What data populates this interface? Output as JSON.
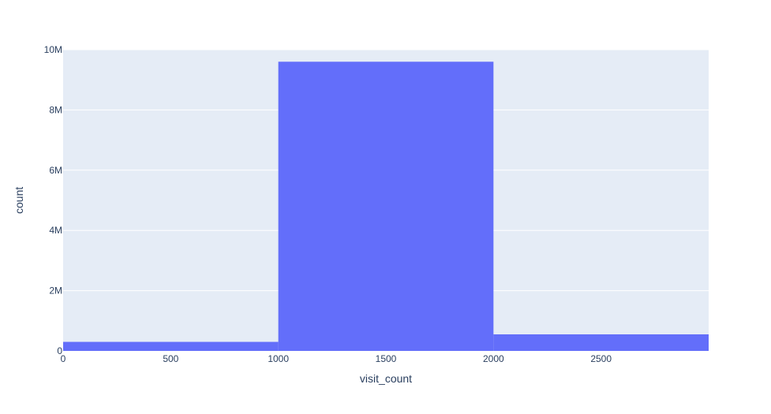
{
  "chart_data": {
    "type": "bar",
    "subtype": "histogram",
    "bins": [
      {
        "x0": 0,
        "x1": 1000,
        "count": 300000
      },
      {
        "x0": 1000,
        "x1": 2000,
        "count": 9600000
      },
      {
        "x0": 2000,
        "x1": 3000,
        "count": 550000
      }
    ],
    "xlabel": "visit_count",
    "ylabel": "count",
    "xlim": [
      0,
      3000
    ],
    "ylim": [
      0,
      10000000
    ],
    "xticks": [
      {
        "value": 0,
        "label": "0"
      },
      {
        "value": 500,
        "label": "500"
      },
      {
        "value": 1000,
        "label": "1000"
      },
      {
        "value": 1500,
        "label": "1500"
      },
      {
        "value": 2000,
        "label": "2000"
      },
      {
        "value": 2500,
        "label": "2500"
      }
    ],
    "yticks": [
      {
        "value": 0,
        "label": "0"
      },
      {
        "value": 2000000,
        "label": "2M"
      },
      {
        "value": 4000000,
        "label": "4M"
      },
      {
        "value": 6000000,
        "label": "6M"
      },
      {
        "value": 8000000,
        "label": "8M"
      },
      {
        "value": 10000000,
        "label": "10M"
      }
    ],
    "grid": true,
    "colors": {
      "bar": "#636efa",
      "plot_background": "#e5ecf6",
      "grid": "#ffffff",
      "text": "#2a3f5f"
    }
  }
}
